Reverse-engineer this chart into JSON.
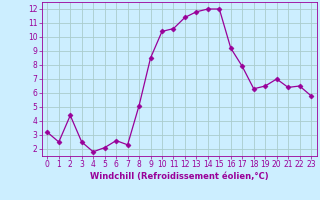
{
  "x": [
    0,
    1,
    2,
    3,
    4,
    5,
    6,
    7,
    8,
    9,
    10,
    11,
    12,
    13,
    14,
    15,
    16,
    17,
    18,
    19,
    20,
    21,
    22,
    23
  ],
  "y": [
    3.2,
    2.5,
    4.4,
    2.5,
    1.8,
    2.1,
    2.6,
    2.3,
    5.1,
    8.5,
    10.4,
    10.6,
    11.4,
    11.8,
    12.0,
    12.0,
    9.2,
    7.9,
    6.3,
    6.5,
    7.0,
    6.4,
    6.5,
    5.8
  ],
  "line_color": "#990099",
  "marker": "D",
  "marker_size": 2.5,
  "bg_color": "#cceeff",
  "grid_color": "#aacccc",
  "xlabel": "Windchill (Refroidissement éolien,°C)",
  "xlabel_color": "#990099",
  "tick_color": "#990099",
  "label_fontsize": 5.5,
  "xlabel_fontsize": 6.0,
  "ylim": [
    1.5,
    12.5
  ],
  "xlim": [
    -0.5,
    23.5
  ],
  "yticks": [
    2,
    3,
    4,
    5,
    6,
    7,
    8,
    9,
    10,
    11,
    12
  ],
  "xticks": [
    0,
    1,
    2,
    3,
    4,
    5,
    6,
    7,
    8,
    9,
    10,
    11,
    12,
    13,
    14,
    15,
    16,
    17,
    18,
    19,
    20,
    21,
    22,
    23
  ]
}
